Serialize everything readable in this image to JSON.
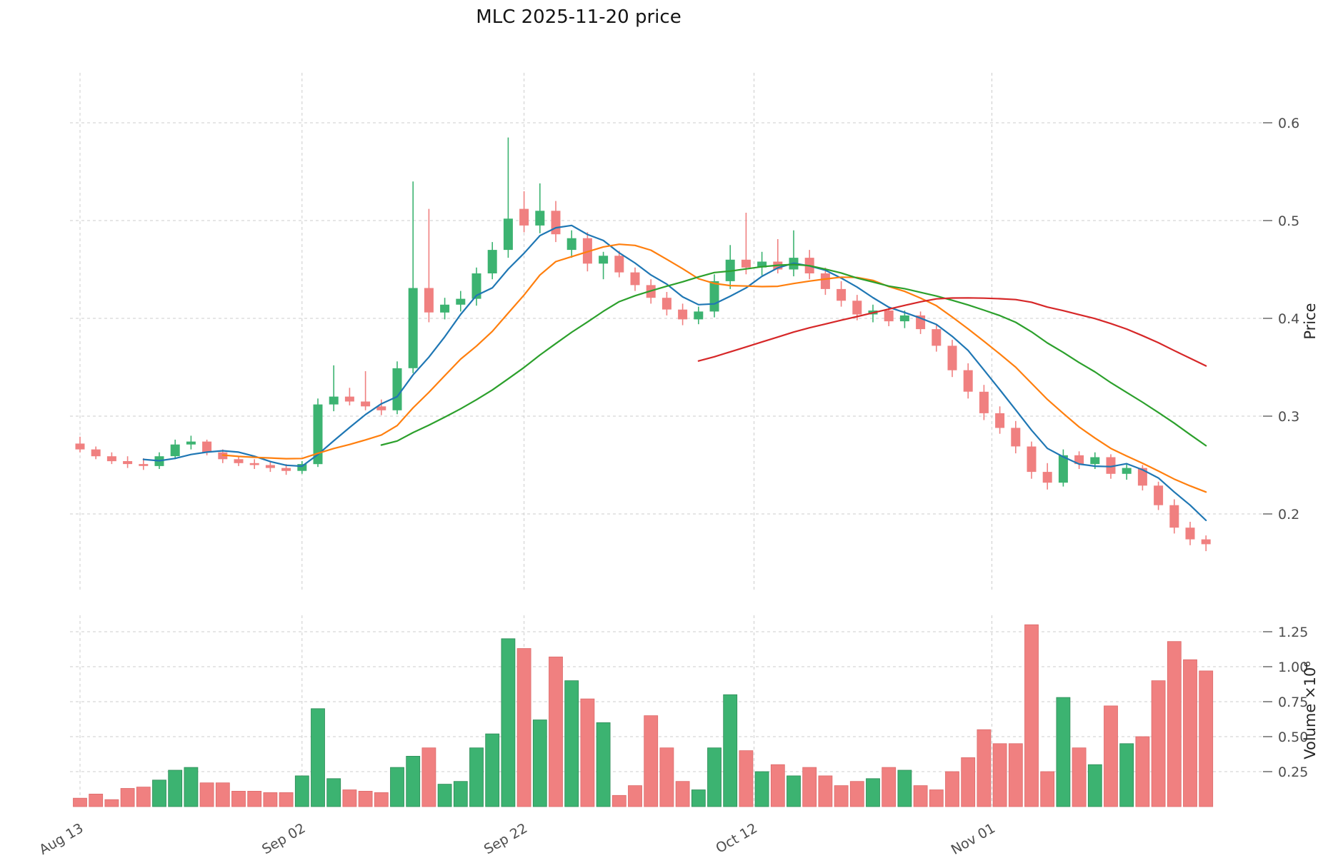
{
  "title": "MLC  2025-11-20  price",
  "axes": {
    "price_label": "Price",
    "volume_label": "Volume ×10⁶",
    "price_ticks": [
      "0.2",
      "0.3",
      "0.4",
      "0.5",
      "0.6"
    ],
    "volume_ticks": [
      "0.25",
      "0.50",
      "0.75",
      "1.00",
      "1.25"
    ],
    "x_ticks": [
      {
        "label": "Aug 13",
        "index": 0
      },
      {
        "label": "Sep 02",
        "index": 14
      },
      {
        "label": "Sep 22",
        "index": 28
      },
      {
        "label": "Oct 12",
        "index": 42.5
      },
      {
        "label": "Nov 01",
        "index": 57.5
      }
    ]
  },
  "colors": {
    "up": "#3cb371",
    "down": "#f08080",
    "up_edge": "#2e8b57",
    "down_edge": "#dd6a6a",
    "grid": "#cccccc"
  },
  "chart_data": {
    "type": "candlestick",
    "title": "MLC  2025-11-20  price",
    "ylabel": "Price",
    "volume_ylabel": "Volume ×10⁶",
    "price_ylim": [
      0.13,
      0.62
    ],
    "volume_ylim_millions": [
      0,
      1.35
    ],
    "x_tick_labels": [
      "Aug 13",
      "Sep 02",
      "Sep 22",
      "Oct 12",
      "Nov 01"
    ],
    "grid": true,
    "legend": "none",
    "columns": [
      "date",
      "open",
      "high",
      "low",
      "close",
      "volume_millions"
    ],
    "candles": [
      [
        "2025-08-13",
        0.272,
        0.279,
        0.263,
        0.266,
        0.06
      ],
      [
        "2025-08-14",
        0.266,
        0.269,
        0.256,
        0.259,
        0.09
      ],
      [
        "2025-08-15",
        0.259,
        0.263,
        0.251,
        0.254,
        0.05
      ],
      [
        "2025-08-18",
        0.254,
        0.259,
        0.247,
        0.251,
        0.13
      ],
      [
        "2025-08-19",
        0.251,
        0.257,
        0.245,
        0.249,
        0.14
      ],
      [
        "2025-08-20",
        0.249,
        0.263,
        0.246,
        0.259,
        0.19
      ],
      [
        "2025-08-21",
        0.259,
        0.276,
        0.256,
        0.271,
        0.26
      ],
      [
        "2025-08-22",
        0.271,
        0.28,
        0.266,
        0.274,
        0.28
      ],
      [
        "2025-08-25",
        0.274,
        0.276,
        0.26,
        0.263,
        0.17
      ],
      [
        "2025-08-26",
        0.263,
        0.266,
        0.252,
        0.256,
        0.17
      ],
      [
        "2025-08-27",
        0.256,
        0.259,
        0.249,
        0.252,
        0.11
      ],
      [
        "2025-08-28",
        0.252,
        0.256,
        0.246,
        0.25,
        0.11
      ],
      [
        "2025-08-29",
        0.25,
        0.253,
        0.243,
        0.247,
        0.1
      ],
      [
        "2025-09-01",
        0.247,
        0.251,
        0.24,
        0.244,
        0.1
      ],
      [
        "2025-09-02",
        0.244,
        0.254,
        0.241,
        0.251,
        0.22
      ],
      [
        "2025-09-03",
        0.251,
        0.318,
        0.248,
        0.312,
        0.7
      ],
      [
        "2025-09-04",
        0.312,
        0.352,
        0.305,
        0.32,
        0.2
      ],
      [
        "2025-09-05",
        0.32,
        0.329,
        0.311,
        0.315,
        0.12
      ],
      [
        "2025-09-08",
        0.315,
        0.346,
        0.306,
        0.31,
        0.11
      ],
      [
        "2025-09-09",
        0.31,
        0.317,
        0.301,
        0.306,
        0.1
      ],
      [
        "2025-09-10",
        0.306,
        0.356,
        0.302,
        0.349,
        0.28
      ],
      [
        "2025-09-11",
        0.349,
        0.54,
        0.344,
        0.431,
        0.36
      ],
      [
        "2025-09-12",
        0.431,
        0.512,
        0.396,
        0.406,
        0.42
      ],
      [
        "2025-09-15",
        0.406,
        0.421,
        0.399,
        0.414,
        0.16
      ],
      [
        "2025-09-16",
        0.414,
        0.428,
        0.407,
        0.42,
        0.18
      ],
      [
        "2025-09-17",
        0.42,
        0.452,
        0.413,
        0.446,
        0.42
      ],
      [
        "2025-09-18",
        0.446,
        0.478,
        0.44,
        0.47,
        0.52
      ],
      [
        "2025-09-19",
        0.47,
        0.585,
        0.462,
        0.502,
        1.2
      ],
      [
        "2025-09-22",
        0.512,
        0.53,
        0.488,
        0.495,
        1.13
      ],
      [
        "2025-09-23",
        0.495,
        0.538,
        0.487,
        0.51,
        0.62
      ],
      [
        "2025-09-24",
        0.51,
        0.52,
        0.478,
        0.486,
        1.07
      ],
      [
        "2025-09-25",
        0.47,
        0.49,
        0.462,
        0.482,
        0.9
      ],
      [
        "2025-09-26",
        0.482,
        0.488,
        0.448,
        0.456,
        0.77
      ],
      [
        "2025-09-29",
        0.456,
        0.468,
        0.44,
        0.464,
        0.6
      ],
      [
        "2025-09-30",
        0.464,
        0.469,
        0.442,
        0.447,
        0.08
      ],
      [
        "2025-10-01",
        0.447,
        0.452,
        0.428,
        0.434,
        0.15
      ],
      [
        "2025-10-02",
        0.434,
        0.44,
        0.415,
        0.421,
        0.65
      ],
      [
        "2025-10-03",
        0.421,
        0.427,
        0.403,
        0.409,
        0.42
      ],
      [
        "2025-10-06",
        0.409,
        0.415,
        0.393,
        0.399,
        0.18
      ],
      [
        "2025-10-07",
        0.399,
        0.412,
        0.394,
        0.407,
        0.12
      ],
      [
        "2025-10-08",
        0.407,
        0.445,
        0.401,
        0.438,
        0.42
      ],
      [
        "2025-10-09",
        0.438,
        0.475,
        0.43,
        0.46,
        0.8
      ],
      [
        "2025-10-10",
        0.46,
        0.508,
        0.445,
        0.452,
        0.4
      ],
      [
        "2025-10-13",
        0.452,
        0.468,
        0.444,
        0.458,
        0.25
      ],
      [
        "2025-10-14",
        0.458,
        0.481,
        0.446,
        0.45,
        0.3
      ],
      [
        "2025-10-15",
        0.45,
        0.49,
        0.443,
        0.462,
        0.22
      ],
      [
        "2025-10-16",
        0.462,
        0.47,
        0.44,
        0.446,
        0.28
      ],
      [
        "2025-10-17",
        0.446,
        0.452,
        0.424,
        0.43,
        0.22
      ],
      [
        "2025-10-20",
        0.43,
        0.438,
        0.412,
        0.418,
        0.15
      ],
      [
        "2025-10-21",
        0.418,
        0.424,
        0.398,
        0.404,
        0.18
      ],
      [
        "2025-10-22",
        0.404,
        0.414,
        0.396,
        0.408,
        0.2
      ],
      [
        "2025-10-23",
        0.408,
        0.412,
        0.392,
        0.397,
        0.28
      ],
      [
        "2025-10-24",
        0.397,
        0.408,
        0.39,
        0.403,
        0.26
      ],
      [
        "2025-10-27",
        0.403,
        0.407,
        0.384,
        0.389,
        0.15
      ],
      [
        "2025-10-28",
        0.389,
        0.394,
        0.366,
        0.372,
        0.12
      ],
      [
        "2025-10-29",
        0.372,
        0.378,
        0.34,
        0.347,
        0.25
      ],
      [
        "2025-10-30",
        0.347,
        0.354,
        0.318,
        0.325,
        0.35
      ],
      [
        "2025-10-31",
        0.325,
        0.332,
        0.296,
        0.303,
        0.55
      ],
      [
        "2025-11-03",
        0.303,
        0.31,
        0.282,
        0.288,
        0.45
      ],
      [
        "2025-11-04",
        0.288,
        0.295,
        0.262,
        0.269,
        0.45
      ],
      [
        "2025-11-05",
        0.269,
        0.274,
        0.236,
        0.243,
        1.3
      ],
      [
        "2025-11-06",
        0.243,
        0.252,
        0.225,
        0.232,
        0.25
      ],
      [
        "2025-11-07",
        0.232,
        0.266,
        0.228,
        0.26,
        0.78
      ],
      [
        "2025-11-10",
        0.26,
        0.264,
        0.246,
        0.251,
        0.42
      ],
      [
        "2025-11-11",
        0.251,
        0.263,
        0.246,
        0.258,
        0.3
      ],
      [
        "2025-11-12",
        0.258,
        0.261,
        0.236,
        0.241,
        0.72
      ],
      [
        "2025-11-13",
        0.241,
        0.252,
        0.235,
        0.247,
        0.45
      ],
      [
        "2025-11-14",
        0.247,
        0.25,
        0.224,
        0.229,
        0.5
      ],
      [
        "2025-11-17",
        0.229,
        0.233,
        0.204,
        0.209,
        0.9
      ],
      [
        "2025-11-18",
        0.209,
        0.215,
        0.18,
        0.186,
        1.18
      ],
      [
        "2025-11-19",
        0.186,
        0.192,
        0.168,
        0.174,
        1.05
      ],
      [
        "2025-11-20",
        0.174,
        0.178,
        0.162,
        0.169,
        0.97
      ]
    ],
    "moving_averages": [
      {
        "name": "SMA5",
        "window": 5,
        "color": "#1f77b4"
      },
      {
        "name": "SMA10",
        "window": 10,
        "color": "#ff7f0e"
      },
      {
        "name": "SMA20",
        "window": 20,
        "color": "#2ca02c"
      },
      {
        "name": "SMA40",
        "window": 40,
        "color": "#d62728"
      }
    ]
  }
}
